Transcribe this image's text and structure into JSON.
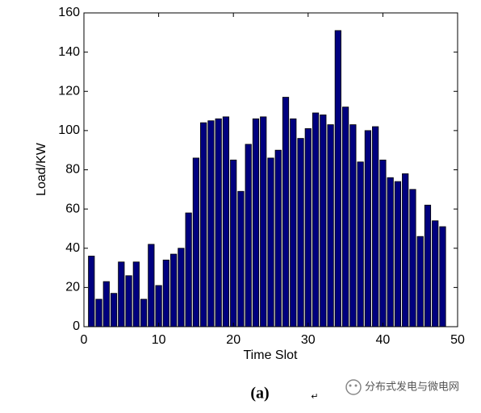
{
  "chart_data": {
    "type": "bar",
    "x": [
      1,
      2,
      3,
      4,
      5,
      6,
      7,
      8,
      9,
      10,
      11,
      12,
      13,
      14,
      15,
      16,
      17,
      18,
      19,
      20,
      21,
      22,
      23,
      24,
      25,
      26,
      27,
      28,
      29,
      30,
      31,
      32,
      33,
      34,
      35,
      36,
      37,
      38,
      39,
      40,
      41,
      42,
      43,
      44,
      45,
      46,
      47,
      48
    ],
    "values": [
      36,
      14,
      23,
      17,
      33,
      26,
      33,
      14,
      42,
      21,
      34,
      37,
      40,
      58,
      86,
      104,
      105,
      106,
      107,
      85,
      69,
      93,
      106,
      107,
      86,
      90,
      117,
      106,
      96,
      101,
      109,
      108,
      103,
      151,
      112,
      103,
      84,
      100,
      102,
      85,
      76,
      74,
      78,
      70,
      46,
      62,
      54,
      51
    ],
    "color": "#00007f",
    "xlabel": "Time Slot",
    "ylabel": "Load/KW",
    "xlim": [
      0,
      50
    ],
    "xticks": [
      0,
      10,
      20,
      30,
      40,
      50
    ],
    "ylim": [
      0,
      160
    ],
    "yticks": [
      0,
      20,
      40,
      60,
      80,
      100,
      120,
      140,
      160
    ],
    "grid": false
  },
  "caption": "(a)",
  "return_mark": "↵",
  "watermark": "分布式发电与微电网"
}
